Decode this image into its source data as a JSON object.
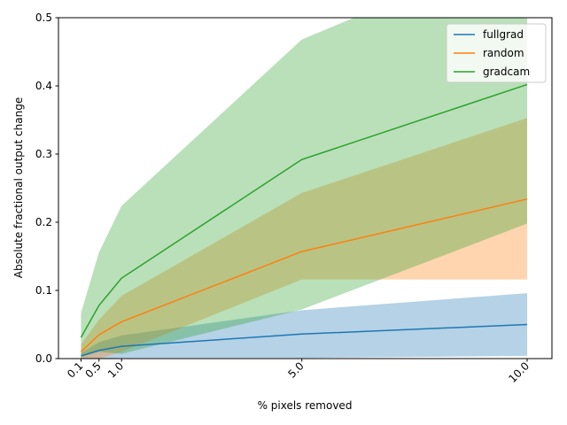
{
  "chart_data": {
    "type": "line",
    "xlabel": "% pixels removed",
    "ylabel": "Absolute fractional output change",
    "x": [
      0.1,
      0.5,
      1.0,
      5.0,
      10.0
    ],
    "xtick_labels": [
      "0.1",
      "0.5",
      "1.0",
      "5.0",
      "10.0"
    ],
    "xtick_rotation": 45,
    "xlim": [
      -0.4,
      10.55
    ],
    "ylim": [
      0,
      0.5
    ],
    "yticks": [
      0.0,
      0.1,
      0.2,
      0.3,
      0.4,
      0.5
    ],
    "ytick_labels": [
      "0.0",
      "0.1",
      "0.2",
      "0.3",
      "0.4",
      "0.5"
    ],
    "grid": false,
    "legend_position": "top-right",
    "series": [
      {
        "name": "fullgrad",
        "color": "#1f77b4",
        "values": [
          0.004,
          0.012,
          0.018,
          0.036,
          0.05
        ],
        "band_lower": [
          0.0,
          0.0,
          0.001,
          0.001,
          0.004
        ],
        "band_upper": [
          0.008,
          0.024,
          0.034,
          0.071,
          0.096
        ]
      },
      {
        "name": "random",
        "color": "#ff7f0e",
        "values": [
          0.01,
          0.035,
          0.054,
          0.157,
          0.234
        ],
        "band_lower": [
          0.0,
          0.0,
          0.01,
          0.116,
          0.116
        ],
        "band_upper": [
          0.021,
          0.057,
          0.092,
          0.243,
          0.353
        ]
      },
      {
        "name": "gradcam",
        "color": "#2ca02c",
        "values": [
          0.031,
          0.078,
          0.118,
          0.292,
          0.402
        ],
        "band_lower": [
          0.002,
          0.01,
          0.007,
          0.072,
          0.198
        ],
        "band_upper": [
          0.067,
          0.156,
          0.224,
          0.468,
          0.606
        ]
      }
    ]
  }
}
